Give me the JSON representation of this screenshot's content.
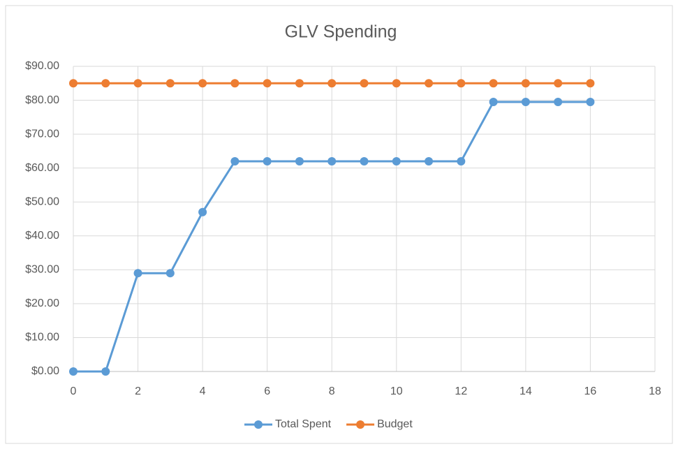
{
  "chart_data": {
    "type": "line",
    "title": "GLV Spending",
    "x": [
      0,
      1,
      2,
      3,
      4,
      5,
      6,
      7,
      8,
      9,
      10,
      11,
      12,
      13,
      14,
      15,
      16
    ],
    "series": [
      {
        "name": "Total Spent",
        "color": "#5b9bd5",
        "values": [
          0,
          0,
          29,
          29,
          47,
          62,
          62,
          62,
          62,
          62,
          62,
          62,
          62,
          79.5,
          79.5,
          79.5,
          79.5
        ]
      },
      {
        "name": "Budget",
        "color": "#ed7d31",
        "values": [
          85,
          85,
          85,
          85,
          85,
          85,
          85,
          85,
          85,
          85,
          85,
          85,
          85,
          85,
          85,
          85,
          85
        ]
      }
    ],
    "xlim": [
      0,
      18
    ],
    "xticks": [
      0,
      2,
      4,
      6,
      8,
      10,
      12,
      14,
      16,
      18
    ],
    "ylim": [
      0,
      90
    ],
    "yticks": [
      {
        "value": 0,
        "label": "$0.00"
      },
      {
        "value": 10,
        "label": "$10.00"
      },
      {
        "value": 20,
        "label": "$20.00"
      },
      {
        "value": 30,
        "label": "$30.00"
      },
      {
        "value": 40,
        "label": "$40.00"
      },
      {
        "value": 50,
        "label": "$50.00"
      },
      {
        "value": 60,
        "label": "$60.00"
      },
      {
        "value": 70,
        "label": "$70.00"
      },
      {
        "value": 80,
        "label": "$80.00"
      },
      {
        "value": 90,
        "label": "$90.00"
      }
    ],
    "grid": true,
    "legend": "bottom"
  }
}
